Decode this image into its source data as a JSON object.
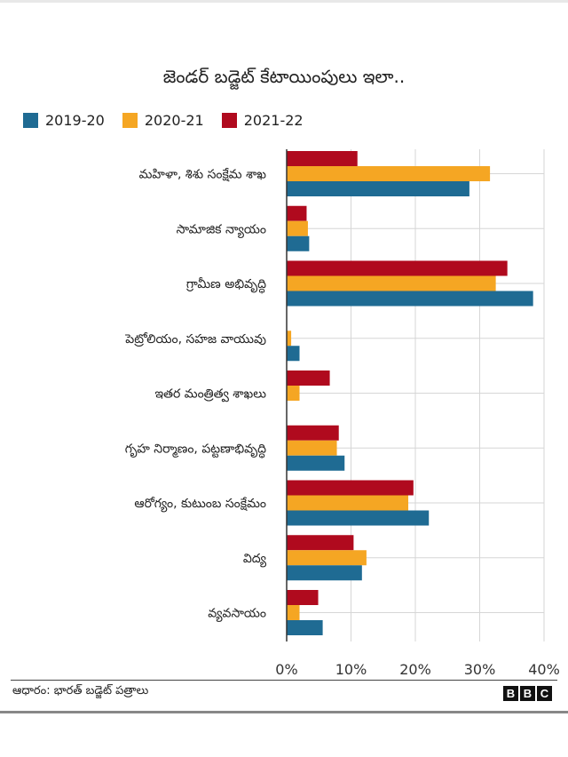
{
  "chart_data": {
    "type": "bar",
    "orientation": "horizontal",
    "title": "జెండర్ బడ్జెట్ కేటాయింపులు ఇలా..",
    "categories": [
      "మహిళా, శిశు సంక్షేమ శాఖ",
      "సామాజిక న్యాయం",
      "గ్రామీణ అభివృద్ధి",
      "పెట్రోలియం, సహజ వాయువు",
      "ఇతర మంత్రిత్వ శాఖలు",
      "గృహ నిర్మాణం, పట్టణాభివృద్ధి",
      "ఆరోగ్యం, కుటుంబ సంక్షేమం",
      "విద్య",
      "వ్యవసాయం"
    ],
    "series": [
      {
        "name": "2019-20",
        "color": "#1f6b93",
        "values": [
          28.4,
          3.5,
          38.3,
          2.0,
          0.0,
          9.0,
          22.1,
          11.7,
          5.6
        ]
      },
      {
        "name": "2020-21",
        "color": "#f5a623",
        "values": [
          31.6,
          3.3,
          32.5,
          0.7,
          2.0,
          7.8,
          18.9,
          12.4,
          2.0
        ]
      },
      {
        "name": "2021-22",
        "color": "#b00a1e",
        "values": [
          11.0,
          3.1,
          34.3,
          0.0,
          6.7,
          8.1,
          19.7,
          10.4,
          4.9
        ]
      }
    ],
    "xlim": [
      0,
      40
    ],
    "x_ticks": [
      "0%",
      "10%",
      "20%",
      "30%",
      "40%"
    ],
    "grid": true,
    "legend_position": "top-left"
  },
  "source": "ఆధారం: భారత్ బడ్జెట్ పత్రాలు",
  "logo": "BBC"
}
